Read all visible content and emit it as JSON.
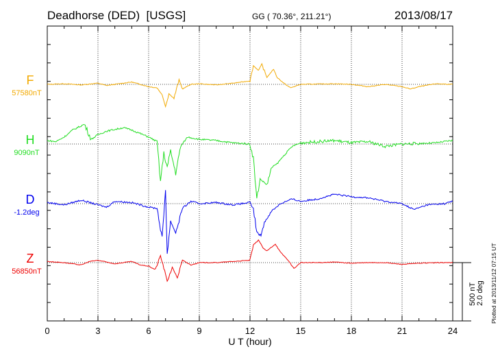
{
  "chart_data": {
    "type": "line",
    "title": "Deadhorse (DED)  [USGS]",
    "coords": "GG ( 70.36°, 211.21°)",
    "date": "2013/08/17",
    "xlabel": "U T (hour)",
    "xlim": [
      0,
      24
    ],
    "xticks": [
      "0",
      "3",
      "6",
      "9",
      "12",
      "15",
      "18",
      "21",
      "24"
    ],
    "grid": "dotted vertical every 3 h",
    "scale_bar": {
      "nT": "500 nT",
      "deg": "2.0 deg"
    },
    "footer": "Plotted at 2013/11/12 07:15 UT",
    "series": [
      {
        "name": "F",
        "baseline_label": "57580nT",
        "color": "#f2a900",
        "points": [
          [
            0,
            0
          ],
          [
            1,
            5
          ],
          [
            2,
            -5
          ],
          [
            3,
            10
          ],
          [
            3.5,
            -10
          ],
          [
            4.5,
            10
          ],
          [
            5,
            20
          ],
          [
            5.5,
            0
          ],
          [
            6,
            -20
          ],
          [
            6.5,
            -30
          ],
          [
            6.8,
            -90
          ],
          [
            7,
            -190
          ],
          [
            7.2,
            -80
          ],
          [
            7.5,
            -120
          ],
          [
            7.8,
            40
          ],
          [
            8,
            -40
          ],
          [
            8.5,
            0
          ],
          [
            9,
            5
          ],
          [
            10,
            -5
          ],
          [
            11,
            10
          ],
          [
            12,
            30
          ],
          [
            12.2,
            160
          ],
          [
            12.5,
            120
          ],
          [
            12.7,
            170
          ],
          [
            13,
            60
          ],
          [
            13.4,
            130
          ],
          [
            13.6,
            60
          ],
          [
            14,
            10
          ],
          [
            14.4,
            -30
          ],
          [
            15,
            0
          ],
          [
            17,
            5
          ],
          [
            18,
            0
          ],
          [
            19,
            -20
          ],
          [
            20,
            0
          ],
          [
            21,
            -20
          ],
          [
            21.5,
            -40
          ],
          [
            22,
            -20
          ],
          [
            23,
            5
          ],
          [
            24,
            0
          ]
        ]
      },
      {
        "name": "H",
        "baseline_label": "9090nT",
        "color": "#22dd22",
        "points": [
          [
            0,
            30
          ],
          [
            0.5,
            20
          ],
          [
            1,
            60
          ],
          [
            1.5,
            120
          ],
          [
            2.2,
            170
          ],
          [
            2.6,
            40
          ],
          [
            3,
            80
          ],
          [
            3.5,
            110
          ],
          [
            4.5,
            140
          ],
          [
            5,
            120
          ],
          [
            5.5,
            90
          ],
          [
            6,
            60
          ],
          [
            6.5,
            20
          ],
          [
            6.7,
            -320
          ],
          [
            6.9,
            -80
          ],
          [
            7.1,
            -200
          ],
          [
            7.3,
            -60
          ],
          [
            7.6,
            -250
          ],
          [
            7.9,
            -20
          ],
          [
            8.3,
            60
          ],
          [
            9,
            40
          ],
          [
            10,
            30
          ],
          [
            11,
            10
          ],
          [
            12,
            0
          ],
          [
            12.2,
            -120
          ],
          [
            12.4,
            -470
          ],
          [
            12.6,
            -300
          ],
          [
            13,
            -350
          ],
          [
            13.3,
            -200
          ],
          [
            13.6,
            -170
          ],
          [
            14,
            -100
          ],
          [
            14.5,
            -20
          ],
          [
            15,
            10
          ],
          [
            16,
            20
          ],
          [
            17,
            30
          ],
          [
            18,
            10
          ],
          [
            19,
            20
          ],
          [
            20,
            -20
          ],
          [
            21,
            0
          ],
          [
            22,
            5
          ],
          [
            23,
            10
          ],
          [
            24,
            30
          ]
        ]
      },
      {
        "name": "D",
        "baseline_label": "-1.2deg",
        "color": "#0000ee",
        "points": [
          [
            0,
            10
          ],
          [
            1,
            -10
          ],
          [
            2,
            30
          ],
          [
            3,
            -10
          ],
          [
            3.5,
            -30
          ],
          [
            4,
            20
          ],
          [
            5,
            10
          ],
          [
            6,
            -30
          ],
          [
            6.5,
            -40
          ],
          [
            6.8,
            -300
          ],
          [
            7,
            120
          ],
          [
            7.1,
            -430
          ],
          [
            7.3,
            -150
          ],
          [
            7.6,
            -250
          ],
          [
            8,
            -40
          ],
          [
            8.5,
            20
          ],
          [
            9,
            0
          ],
          [
            10,
            10
          ],
          [
            11,
            -10
          ],
          [
            12,
            10
          ],
          [
            12.2,
            -50
          ],
          [
            12.4,
            -240
          ],
          [
            12.6,
            -280
          ],
          [
            12.9,
            -150
          ],
          [
            13.3,
            -60
          ],
          [
            13.8,
            0
          ],
          [
            14.5,
            40
          ],
          [
            15,
            20
          ],
          [
            16,
            40
          ],
          [
            17,
            80
          ],
          [
            18,
            60
          ],
          [
            19,
            50
          ],
          [
            20,
            20
          ],
          [
            21,
            0
          ],
          [
            21.7,
            -50
          ],
          [
            22.5,
            -10
          ],
          [
            23.5,
            0
          ],
          [
            24,
            20
          ]
        ]
      },
      {
        "name": "Z",
        "baseline_label": "56850nT",
        "color": "#ee0000",
        "points": [
          [
            0,
            10
          ],
          [
            1,
            0
          ],
          [
            2,
            -20
          ],
          [
            2.5,
            10
          ],
          [
            3,
            20
          ],
          [
            4,
            -10
          ],
          [
            5,
            10
          ],
          [
            5.5,
            -20
          ],
          [
            6,
            -30
          ],
          [
            6.4,
            -60
          ],
          [
            6.7,
            60
          ],
          [
            7,
            -100
          ],
          [
            7.1,
            -160
          ],
          [
            7.4,
            -40
          ],
          [
            7.7,
            -130
          ],
          [
            8,
            20
          ],
          [
            8.5,
            -20
          ],
          [
            9,
            0
          ],
          [
            10,
            0
          ],
          [
            11,
            10
          ],
          [
            12,
            20
          ],
          [
            12.2,
            150
          ],
          [
            12.5,
            195
          ],
          [
            12.8,
            120
          ],
          [
            13,
            100
          ],
          [
            13.5,
            160
          ],
          [
            13.8,
            90
          ],
          [
            14.2,
            30
          ],
          [
            14.6,
            -50
          ],
          [
            15,
            0
          ],
          [
            16,
            0
          ],
          [
            17,
            5
          ],
          [
            18,
            -5
          ],
          [
            19,
            0
          ],
          [
            20,
            0
          ],
          [
            21,
            -15
          ],
          [
            22,
            -5
          ],
          [
            23,
            0
          ],
          [
            24,
            0
          ]
        ]
      }
    ]
  }
}
